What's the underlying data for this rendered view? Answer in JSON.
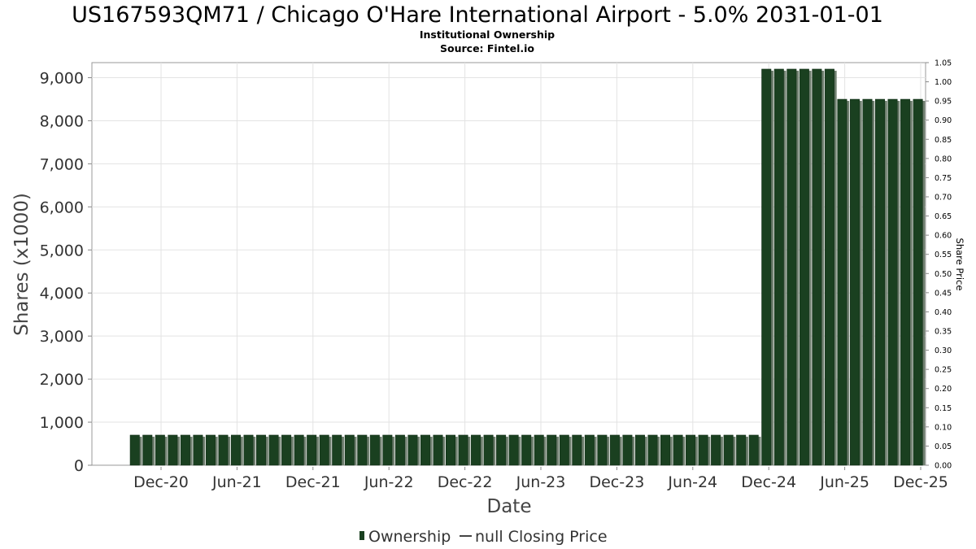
{
  "chart_data": {
    "type": "bar",
    "title": "US167593QM71 / Chicago O'Hare International Airport - 5.0% 2031-01-01",
    "subtitle_lines": [
      "Institutional Ownership",
      "Source: Fintel.io"
    ],
    "xlabel": "Date",
    "ylabel": "Shares (x1000)",
    "y2label": "Share Price",
    "x_ticks": [
      "Dec-20",
      "Jun-21",
      "Dec-21",
      "Jun-22",
      "Dec-22",
      "Jun-23",
      "Dec-23",
      "Jun-24",
      "Dec-24",
      "Jun-25",
      "Dec-25"
    ],
    "y_ticks": [
      "0",
      "1,000",
      "2,000",
      "3,000",
      "4,000",
      "5,000",
      "6,000",
      "7,000",
      "8,000",
      "9,000"
    ],
    "y2_ticks": [
      "0.00",
      "0.05",
      "0.10",
      "0.15",
      "0.20",
      "0.25",
      "0.30",
      "0.35",
      "0.40",
      "0.45",
      "0.50",
      "0.55",
      "0.60",
      "0.65",
      "0.70",
      "0.75",
      "0.80",
      "0.85",
      "0.90",
      "0.95",
      "1.00",
      "1.05"
    ],
    "ylim": [
      0,
      9350
    ],
    "y2lim": [
      0,
      1.05
    ],
    "grid": true,
    "legend_position": "bottom-center",
    "series": [
      {
        "name": "Ownership",
        "color": "#1a4020",
        "values": [
          700,
          700,
          700,
          700,
          700,
          700,
          700,
          700,
          700,
          700,
          700,
          700,
          700,
          700,
          700,
          700,
          700,
          700,
          700,
          700,
          700,
          700,
          700,
          700,
          700,
          700,
          700,
          700,
          700,
          700,
          700,
          700,
          700,
          700,
          700,
          700,
          700,
          700,
          700,
          700,
          700,
          700,
          700,
          700,
          700,
          700,
          700,
          700,
          700,
          700,
          9200,
          9200,
          9200,
          9200,
          9200,
          9200,
          8500,
          8500,
          8500,
          8500,
          8500,
          8500,
          8500
        ]
      },
      {
        "name": "null Closing Price",
        "color": "#444444",
        "values": []
      }
    ]
  }
}
